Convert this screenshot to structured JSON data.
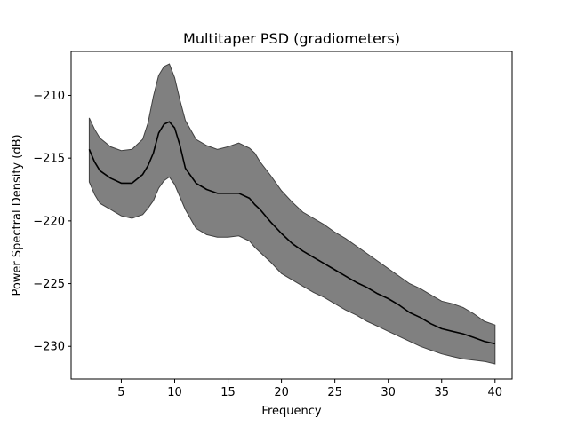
{
  "chart_data": {
    "type": "area",
    "title": "Multitaper PSD (gradiometers)",
    "xlabel": "Frequency",
    "ylabel": "Power Spectral Density (dB)",
    "xlim": [
      0.3,
      41.6
    ],
    "ylim": [
      -232.6,
      -206.5
    ],
    "xticks": [
      5,
      10,
      15,
      20,
      25,
      30,
      35,
      40
    ],
    "yticks": [
      -210,
      -215,
      -220,
      -225,
      -230
    ],
    "grid": false,
    "legend": "none",
    "colors": {
      "mean_line": "#000000",
      "band_fill": "#808080",
      "band_edge": "#404040"
    },
    "x": [
      2.0,
      2.5,
      3.0,
      4.0,
      5.0,
      6.0,
      7.0,
      7.5,
      8.0,
      8.5,
      9.0,
      9.5,
      10.0,
      10.5,
      11.0,
      12.0,
      13.0,
      14.0,
      15.0,
      16.0,
      17.0,
      17.5,
      18.0,
      19.0,
      20.0,
      21.0,
      22.0,
      23.0,
      24.0,
      25.0,
      26.0,
      27.0,
      28.0,
      29.0,
      30.0,
      31.0,
      32.0,
      33.0,
      34.0,
      35.0,
      36.0,
      37.0,
      38.0,
      39.0,
      40.0
    ],
    "series": [
      {
        "name": "",
        "role": "mean",
        "values": [
          -214.3,
          -215.3,
          -216.0,
          -216.6,
          -217.0,
          -217.0,
          -216.3,
          -215.6,
          -214.6,
          -213.0,
          -212.3,
          -212.1,
          -212.6,
          -214.0,
          -215.8,
          -217.0,
          -217.5,
          -217.8,
          -217.8,
          -217.8,
          -218.2,
          -218.7,
          -219.1,
          -220.1,
          -221.0,
          -221.8,
          -222.4,
          -222.9,
          -223.4,
          -223.9,
          -224.4,
          -224.9,
          -225.3,
          -225.8,
          -226.2,
          -226.7,
          -227.3,
          -227.7,
          -228.2,
          -228.6,
          -228.8,
          -229.0,
          -229.3,
          -229.6,
          -229.8
        ]
      },
      {
        "name": "",
        "role": "upper",
        "values": [
          -211.8,
          -212.7,
          -213.4,
          -214.1,
          -214.4,
          -214.3,
          -213.5,
          -212.2,
          -210.1,
          -208.4,
          -207.7,
          -207.5,
          -208.6,
          -210.4,
          -212.0,
          -213.5,
          -214.0,
          -214.3,
          -214.1,
          -213.8,
          -214.2,
          -214.6,
          -215.3,
          -216.4,
          -217.6,
          -218.5,
          -219.3,
          -219.8,
          -220.3,
          -220.9,
          -221.4,
          -222.0,
          -222.6,
          -223.2,
          -223.8,
          -224.4,
          -225.0,
          -225.4,
          -225.9,
          -226.4,
          -226.6,
          -226.9,
          -227.4,
          -228.0,
          -228.3
        ]
      },
      {
        "name": "",
        "role": "lower",
        "values": [
          -216.9,
          -217.9,
          -218.6,
          -219.1,
          -219.6,
          -219.8,
          -219.5,
          -219.0,
          -218.4,
          -217.4,
          -216.8,
          -216.5,
          -217.1,
          -218.1,
          -219.1,
          -220.6,
          -221.1,
          -221.3,
          -221.3,
          -221.2,
          -221.6,
          -222.1,
          -222.5,
          -223.3,
          -224.2,
          -224.7,
          -225.2,
          -225.7,
          -226.1,
          -226.6,
          -227.1,
          -227.5,
          -228.0,
          -228.4,
          -228.8,
          -229.2,
          -229.6,
          -230.0,
          -230.3,
          -230.6,
          -230.8,
          -231.0,
          -231.1,
          -231.2,
          -231.4
        ]
      }
    ]
  }
}
